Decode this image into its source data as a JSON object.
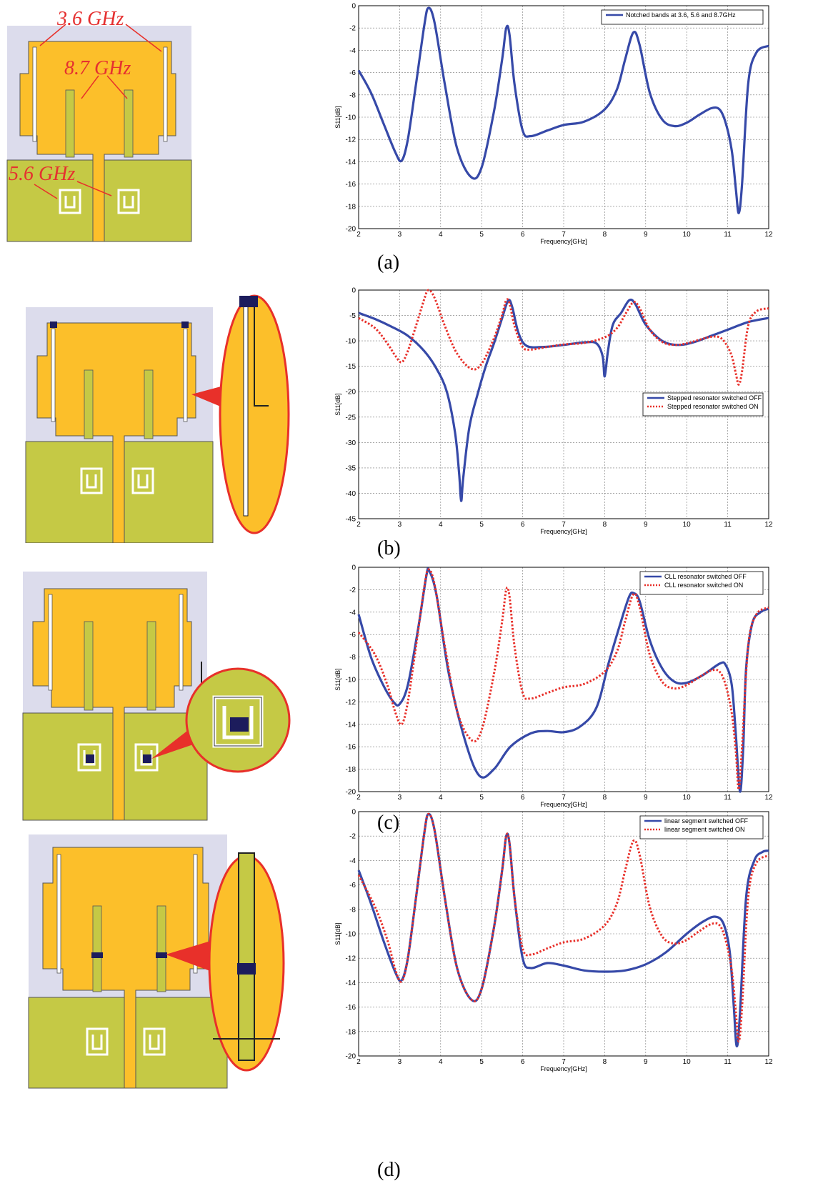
{
  "colors": {
    "patch": "#fcbf2a",
    "ground": "#c5c945",
    "substrate": "#dcdcec",
    "outline": "#2b2b2b",
    "switch": "#1c1c5c",
    "series_off": "#3649a8",
    "series_on": "#e8302a",
    "callout": "#e8302a"
  },
  "annotations": {
    "a_3_6": "3.6 GHz",
    "a_8_7": "8.7 GHz",
    "a_5_6": "5.6 GHz"
  },
  "labels": [
    "(a)",
    "(b)",
    "(c)",
    "(d)"
  ],
  "chart_data": [
    {
      "type": "line",
      "panel": "(a)",
      "xlabel": "Frequency[GHz]",
      "ylabel": "S11[dB]",
      "xlim": [
        2,
        12
      ],
      "ylim": [
        -20,
        0
      ],
      "xticks": [
        2,
        3,
        4,
        5,
        6,
        7,
        8,
        9,
        10,
        11,
        12
      ],
      "yticks": [
        0,
        -2,
        -4,
        -6,
        -8,
        -10,
        -12,
        -14,
        -16,
        -18,
        -20
      ],
      "grid": true,
      "legend_position": "top-right",
      "series": [
        {
          "name": "Notched bands at 3.6, 5.6 and 8.7GHz",
          "style": "solid",
          "color": "#3649a8",
          "x": [
            2.0,
            2.3,
            2.6,
            2.9,
            3.05,
            3.2,
            3.4,
            3.6,
            3.7,
            3.85,
            4.1,
            4.4,
            4.75,
            5.0,
            5.3,
            5.5,
            5.6,
            5.68,
            5.8,
            6.0,
            6.2,
            6.6,
            7.0,
            7.5,
            8.0,
            8.3,
            8.5,
            8.7,
            8.85,
            9.1,
            9.4,
            9.7,
            10.0,
            10.3,
            10.6,
            10.8,
            10.95,
            11.1,
            11.2,
            11.27,
            11.35,
            11.5,
            11.7,
            12.0
          ],
          "y": [
            -5.8,
            -7.8,
            -10.5,
            -13.2,
            -13.9,
            -12.0,
            -7.0,
            -1.8,
            -0.2,
            -1.5,
            -7.0,
            -12.8,
            -15.4,
            -14.5,
            -9.5,
            -4.8,
            -2.0,
            -2.6,
            -7.0,
            -11.2,
            -11.7,
            -11.2,
            -10.7,
            -10.4,
            -9.3,
            -7.5,
            -4.8,
            -2.4,
            -3.5,
            -7.8,
            -10.2,
            -10.8,
            -10.5,
            -9.8,
            -9.2,
            -9.3,
            -10.5,
            -13.0,
            -16.5,
            -18.6,
            -16.0,
            -7.0,
            -4.2,
            -3.6
          ]
        }
      ]
    },
    {
      "type": "line",
      "panel": "(b)",
      "xlabel": "Frequency[GHz]",
      "ylabel": "S11[dB]",
      "xlim": [
        2,
        12
      ],
      "ylim": [
        -45,
        0
      ],
      "xticks": [
        2,
        3,
        4,
        5,
        6,
        7,
        8,
        9,
        10,
        11,
        12
      ],
      "yticks": [
        0,
        -5,
        -10,
        -15,
        -20,
        -25,
        -30,
        -35,
        -40,
        -45
      ],
      "grid": true,
      "legend_position": "right",
      "series": [
        {
          "name": "Stepped resonator switched OFF",
          "style": "solid",
          "color": "#3649a8",
          "x": [
            2.0,
            2.4,
            2.8,
            3.2,
            3.6,
            3.9,
            4.15,
            4.35,
            4.45,
            4.5,
            4.55,
            4.7,
            4.9,
            5.1,
            5.3,
            5.5,
            5.65,
            5.75,
            5.9,
            6.1,
            6.5,
            7.0,
            7.5,
            7.8,
            7.95,
            8.0,
            8.08,
            8.2,
            8.4,
            8.6,
            8.75,
            9.0,
            9.4,
            9.8,
            10.2,
            10.6,
            11.0,
            11.5,
            12.0
          ],
          "y": [
            -4.5,
            -5.7,
            -7.2,
            -9.0,
            -12.0,
            -15.5,
            -20.0,
            -28.0,
            -36.0,
            -41.5,
            -37.0,
            -27.0,
            -20.5,
            -15.0,
            -10.5,
            -5.5,
            -2.0,
            -3.5,
            -8.5,
            -11.0,
            -11.2,
            -10.8,
            -10.3,
            -10.5,
            -13.0,
            -17.0,
            -12.0,
            -6.8,
            -4.5,
            -2.0,
            -2.8,
            -6.8,
            -10.0,
            -10.8,
            -10.2,
            -9.0,
            -7.8,
            -6.3,
            -5.5
          ]
        },
        {
          "name": "Stepped resonator switched ON",
          "style": "dotted",
          "color": "#e8302a",
          "x": [
            2.0,
            2.4,
            2.7,
            2.9,
            3.05,
            3.2,
            3.4,
            3.6,
            3.7,
            3.85,
            4.1,
            4.4,
            4.75,
            5.0,
            5.3,
            5.5,
            5.6,
            5.68,
            5.8,
            6.0,
            6.2,
            6.6,
            7.0,
            7.5,
            8.0,
            8.3,
            8.5,
            8.7,
            8.85,
            9.1,
            9.4,
            9.7,
            10.0,
            10.3,
            10.6,
            10.8,
            10.95,
            11.1,
            11.2,
            11.27,
            11.35,
            11.5,
            11.7,
            12.0
          ],
          "y": [
            -5.5,
            -7.5,
            -10.5,
            -13.0,
            -14.2,
            -12.0,
            -7.0,
            -1.8,
            0.0,
            -1.5,
            -7.0,
            -12.5,
            -15.5,
            -14.5,
            -9.5,
            -4.8,
            -2.0,
            -2.6,
            -7.0,
            -11.2,
            -11.7,
            -11.2,
            -10.7,
            -10.4,
            -9.3,
            -7.5,
            -4.8,
            -2.4,
            -3.5,
            -7.8,
            -10.2,
            -10.8,
            -10.5,
            -9.8,
            -9.2,
            -9.3,
            -10.5,
            -13.0,
            -16.5,
            -18.6,
            -16.0,
            -7.0,
            -4.2,
            -3.6
          ]
        }
      ]
    },
    {
      "type": "line",
      "panel": "(c)",
      "xlabel": "Frequency[GHz]",
      "ylabel": "S11[dB]",
      "xlim": [
        2,
        12
      ],
      "ylim": [
        -20,
        0
      ],
      "xticks": [
        2,
        3,
        4,
        5,
        6,
        7,
        8,
        9,
        10,
        11,
        12
      ],
      "yticks": [
        0,
        -2,
        -4,
        -6,
        -8,
        -10,
        -12,
        -14,
        -16,
        -18,
        -20
      ],
      "grid": true,
      "legend_position": "top-right",
      "series": [
        {
          "name": "CLL resonator switched OFF",
          "style": "solid",
          "color": "#3649a8",
          "x": [
            2.0,
            2.3,
            2.6,
            2.85,
            3.0,
            3.2,
            3.45,
            3.65,
            3.72,
            3.9,
            4.2,
            4.6,
            4.95,
            5.3,
            5.7,
            6.2,
            6.6,
            7.0,
            7.4,
            7.8,
            8.1,
            8.4,
            8.6,
            8.7,
            8.85,
            9.1,
            9.4,
            9.7,
            10.0,
            10.4,
            10.8,
            10.95,
            11.1,
            11.2,
            11.3,
            11.38,
            11.45,
            11.6,
            11.8,
            12.0
          ],
          "y": [
            -4.2,
            -8.0,
            -10.5,
            -12.0,
            -12.2,
            -10.5,
            -5.5,
            -0.8,
            -0.3,
            -2.5,
            -9.5,
            -15.5,
            -18.6,
            -18.0,
            -16.0,
            -14.8,
            -14.6,
            -14.7,
            -14.2,
            -12.5,
            -8.5,
            -4.8,
            -2.6,
            -2.3,
            -3.0,
            -6.5,
            -9.0,
            -10.2,
            -10.3,
            -9.6,
            -8.6,
            -8.7,
            -10.5,
            -15.0,
            -20.0,
            -16.0,
            -9.0,
            -5.0,
            -4.0,
            -3.7
          ]
        },
        {
          "name": "CLL resonator switched ON",
          "style": "dotted",
          "color": "#e8302a",
          "x": [
            2.0,
            2.4,
            2.7,
            2.9,
            3.05,
            3.2,
            3.4,
            3.6,
            3.7,
            3.85,
            4.1,
            4.4,
            4.75,
            5.0,
            5.3,
            5.5,
            5.6,
            5.68,
            5.8,
            6.0,
            6.2,
            6.6,
            7.0,
            7.5,
            8.0,
            8.3,
            8.5,
            8.7,
            8.85,
            9.1,
            9.4,
            9.7,
            10.0,
            10.3,
            10.6,
            10.8,
            10.95,
            11.1,
            11.2,
            11.27,
            11.35,
            11.5,
            11.7,
            12.0
          ],
          "y": [
            -5.8,
            -7.8,
            -10.5,
            -13.0,
            -14.0,
            -12.0,
            -7.0,
            -1.8,
            -0.2,
            -1.5,
            -7.0,
            -12.8,
            -15.4,
            -14.5,
            -9.5,
            -4.8,
            -2.0,
            -2.6,
            -7.0,
            -11.2,
            -11.7,
            -11.2,
            -10.7,
            -10.4,
            -9.3,
            -7.5,
            -4.8,
            -2.4,
            -3.5,
            -7.8,
            -10.2,
            -10.8,
            -10.5,
            -9.8,
            -9.2,
            -9.3,
            -10.5,
            -13.0,
            -16.5,
            -19.8,
            -16.0,
            -7.0,
            -4.2,
            -3.6
          ]
        }
      ]
    },
    {
      "type": "line",
      "panel": "(d)",
      "xlabel": "Frequency[GHz]",
      "ylabel": "S11[dB]",
      "xlim": [
        2,
        12
      ],
      "ylim": [
        -20,
        0
      ],
      "xticks": [
        2,
        3,
        4,
        5,
        6,
        7,
        8,
        9,
        10,
        11,
        12
      ],
      "yticks": [
        0,
        -2,
        -4,
        -6,
        -8,
        -10,
        -12,
        -14,
        -16,
        -18,
        -20
      ],
      "grid": true,
      "legend_position": "top-right",
      "series": [
        {
          "name": "linear segment switched OFF",
          "style": "solid",
          "color": "#3649a8",
          "x": [
            2.0,
            2.3,
            2.6,
            2.9,
            3.05,
            3.2,
            3.4,
            3.6,
            3.7,
            3.85,
            4.1,
            4.4,
            4.75,
            5.0,
            5.3,
            5.5,
            5.6,
            5.68,
            5.8,
            6.0,
            6.2,
            6.6,
            7.0,
            7.5,
            8.0,
            8.5,
            9.0,
            9.5,
            10.0,
            10.4,
            10.7,
            10.9,
            11.05,
            11.15,
            11.22,
            11.3,
            11.45,
            11.65,
            11.85,
            12.0
          ],
          "y": [
            -4.8,
            -7.5,
            -10.5,
            -13.2,
            -13.8,
            -12.0,
            -7.0,
            -1.8,
            -0.2,
            -1.5,
            -7.0,
            -12.8,
            -15.4,
            -14.5,
            -9.5,
            -4.8,
            -2.0,
            -2.6,
            -7.0,
            -12.0,
            -12.8,
            -12.4,
            -12.6,
            -13.0,
            -13.1,
            -13.0,
            -12.5,
            -11.5,
            -10.0,
            -9.0,
            -8.6,
            -9.2,
            -11.5,
            -16.0,
            -19.2,
            -16.5,
            -7.0,
            -4.0,
            -3.3,
            -3.2
          ]
        },
        {
          "name": "linear segment switched ON",
          "style": "dotted",
          "color": "#e8302a",
          "x": [
            2.0,
            2.4,
            2.7,
            2.9,
            3.05,
            3.2,
            3.4,
            3.6,
            3.7,
            3.85,
            4.1,
            4.4,
            4.75,
            5.0,
            5.3,
            5.5,
            5.6,
            5.68,
            5.8,
            6.0,
            6.2,
            6.6,
            7.0,
            7.5,
            8.0,
            8.3,
            8.5,
            8.7,
            8.85,
            9.1,
            9.4,
            9.7,
            10.0,
            10.3,
            10.6,
            10.8,
            10.95,
            11.1,
            11.2,
            11.27,
            11.35,
            11.5,
            11.7,
            12.0
          ],
          "y": [
            -5.2,
            -7.8,
            -10.5,
            -13.0,
            -13.9,
            -12.0,
            -7.0,
            -1.8,
            -0.2,
            -1.5,
            -7.0,
            -12.8,
            -15.4,
            -14.5,
            -9.5,
            -4.8,
            -2.0,
            -2.6,
            -7.0,
            -11.2,
            -11.7,
            -11.2,
            -10.7,
            -10.4,
            -9.3,
            -7.5,
            -4.8,
            -2.4,
            -3.5,
            -7.8,
            -10.2,
            -10.8,
            -10.5,
            -9.8,
            -9.2,
            -9.3,
            -10.5,
            -13.0,
            -16.5,
            -18.8,
            -16.0,
            -7.0,
            -4.2,
            -3.6
          ]
        }
      ]
    }
  ]
}
